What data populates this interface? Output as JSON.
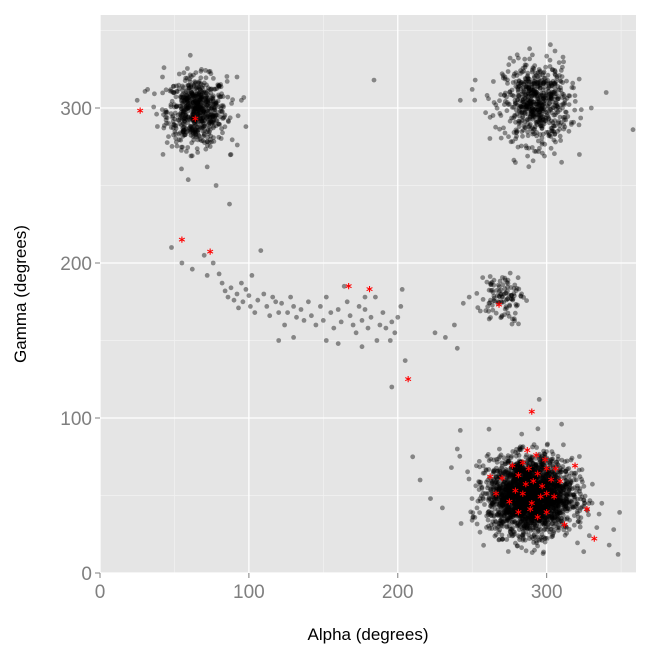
{
  "chart_data": {
    "type": "scatter",
    "title": "",
    "xlabel": "Alpha (degrees)",
    "ylabel": "Gamma (degrees)",
    "xlim": [
      0,
      360
    ],
    "ylim": [
      0,
      360
    ],
    "x_ticks": [
      0,
      100,
      200,
      300
    ],
    "y_ticks": [
      0,
      100,
      200,
      300
    ],
    "grid": true,
    "legend": "none",
    "colors": {
      "panel": "#e5e5e5",
      "grid": "#ffffff",
      "points": "#000000",
      "markers": "#ff0000",
      "tick_text": "#7f7f7f"
    },
    "clusters": [
      {
        "center": [
          65,
          298
        ],
        "spread": [
          10,
          11
        ],
        "count": 650
      },
      {
        "center": [
          293,
          303
        ],
        "spread": [
          11,
          13
        ],
        "count": 650
      },
      {
        "center": [
          289,
          50
        ],
        "spread": [
          14,
          12
        ],
        "count": 2600
      },
      {
        "center": [
          270,
          178
        ],
        "spread": [
          7,
          8
        ],
        "count": 110
      }
    ],
    "scatter_points": [
      [
        25,
        305
      ],
      [
        32,
        312
      ],
      [
        38,
        296
      ],
      [
        42,
        320
      ],
      [
        92,
        320
      ],
      [
        95,
        305
      ],
      [
        98,
        288
      ],
      [
        88,
        270
      ],
      [
        58,
        272
      ],
      [
        72,
        262
      ],
      [
        78,
        250
      ],
      [
        87,
        238
      ],
      [
        184,
        318
      ],
      [
        43,
        326
      ],
      [
        250,
        312
      ],
      [
        242,
        305
      ],
      [
        252,
        318
      ],
      [
        259,
        297
      ],
      [
        318,
        313
      ],
      [
        330,
        300
      ],
      [
        340,
        310
      ],
      [
        358,
        286
      ],
      [
        322,
        270
      ],
      [
        310,
        265
      ],
      [
        303,
        274
      ],
      [
        272,
        320
      ],
      [
        262,
        294
      ],
      [
        48,
        210
      ],
      [
        55,
        200
      ],
      [
        62,
        196
      ],
      [
        70,
        205
      ],
      [
        72,
        192
      ],
      [
        76,
        200
      ],
      [
        80,
        193
      ],
      [
        82,
        187
      ],
      [
        84,
        182
      ],
      [
        86,
        178
      ],
      [
        88,
        184
      ],
      [
        90,
        176
      ],
      [
        92,
        180
      ],
      [
        93,
        171
      ],
      [
        95,
        187
      ],
      [
        96,
        175
      ],
      [
        98,
        183
      ],
      [
        100,
        179
      ],
      [
        101,
        172
      ],
      [
        102,
        192
      ],
      [
        104,
        168
      ],
      [
        106,
        176
      ],
      [
        108,
        208
      ],
      [
        110,
        180
      ],
      [
        112,
        172
      ],
      [
        114,
        166
      ],
      [
        116,
        178
      ],
      [
        118,
        175
      ],
      [
        120,
        168
      ],
      [
        122,
        174
      ],
      [
        124,
        160
      ],
      [
        126,
        168
      ],
      [
        128,
        178
      ],
      [
        130,
        172
      ],
      [
        132,
        165
      ],
      [
        135,
        170
      ],
      [
        137,
        163
      ],
      [
        140,
        175
      ],
      [
        142,
        166
      ],
      [
        145,
        160
      ],
      [
        148,
        172
      ],
      [
        150,
        163
      ],
      [
        152,
        178
      ],
      [
        155,
        168
      ],
      [
        157,
        158
      ],
      [
        160,
        170
      ],
      [
        162,
        162
      ],
      [
        164,
        185
      ],
      [
        166,
        175
      ],
      [
        168,
        166
      ],
      [
        170,
        160
      ],
      [
        172,
        155
      ],
      [
        174,
        172
      ],
      [
        176,
        163
      ],
      [
        178,
        170
      ],
      [
        180,
        158
      ],
      [
        182,
        165
      ],
      [
        185,
        178
      ],
      [
        188,
        160
      ],
      [
        190,
        168
      ],
      [
        192,
        158
      ],
      [
        195,
        150
      ],
      [
        196,
        162
      ],
      [
        198,
        155
      ],
      [
        200,
        165
      ],
      [
        202,
        172
      ],
      [
        203,
        183
      ],
      [
        178,
        178
      ],
      [
        205,
        137
      ],
      [
        196,
        120
      ],
      [
        232,
        152
      ],
      [
        225,
        155
      ],
      [
        240,
        145
      ],
      [
        238,
        160
      ],
      [
        244,
        174
      ],
      [
        248,
        178
      ],
      [
        120,
        150
      ],
      [
        130,
        152
      ],
      [
        152,
        150
      ],
      [
        160,
        148
      ],
      [
        176,
        146
      ],
      [
        186,
        150
      ],
      [
        210,
        75
      ],
      [
        215,
        60
      ],
      [
        222,
        48
      ],
      [
        230,
        42
      ],
      [
        236,
        68
      ],
      [
        242,
        92
      ],
      [
        240,
        80
      ],
      [
        337,
        45
      ],
      [
        345,
        28
      ],
      [
        348,
        12
      ],
      [
        342,
        18
      ],
      [
        310,
        96
      ],
      [
        295,
        112
      ]
    ],
    "marked_points": [
      [
        27,
        297
      ],
      [
        64,
        292
      ],
      [
        55,
        214
      ],
      [
        74,
        206
      ],
      [
        167,
        184
      ],
      [
        181,
        182
      ],
      [
        207,
        124
      ],
      [
        268,
        172
      ],
      [
        290,
        103
      ],
      [
        277,
        68
      ],
      [
        281,
        62
      ],
      [
        284,
        70
      ],
      [
        288,
        66
      ],
      [
        291,
        58
      ],
      [
        294,
        63
      ],
      [
        297,
        55
      ],
      [
        300,
        66
      ],
      [
        303,
        59
      ],
      [
        296,
        48
      ],
      [
        290,
        44
      ],
      [
        284,
        50
      ],
      [
        279,
        52
      ],
      [
        275,
        45
      ],
      [
        270,
        60
      ],
      [
        262,
        61
      ],
      [
        266,
        50
      ],
      [
        281,
        38
      ],
      [
        289,
        40
      ],
      [
        294,
        35
      ],
      [
        300,
        38
      ],
      [
        305,
        48
      ],
      [
        309,
        58
      ],
      [
        299,
        72
      ],
      [
        293,
        75
      ],
      [
        287,
        78
      ],
      [
        319,
        68
      ],
      [
        312,
        30
      ],
      [
        327,
        40
      ],
      [
        332,
        21
      ],
      [
        300,
        50
      ],
      [
        286,
        56
      ],
      [
        306,
        66
      ]
    ],
    "marker_symbol": "*"
  }
}
